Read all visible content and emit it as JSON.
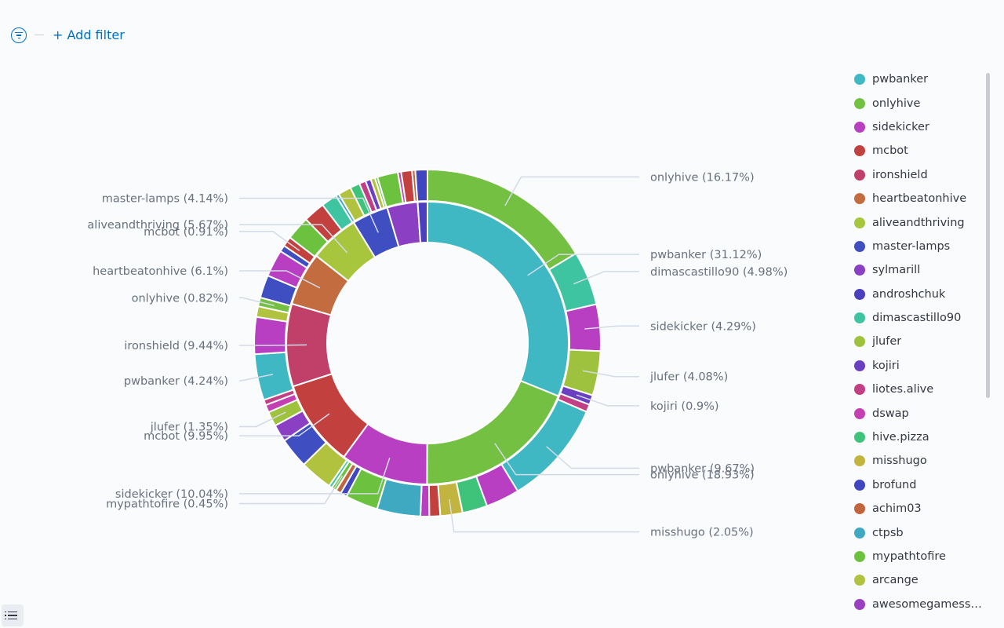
{
  "filter_bar": {
    "add_filter_label": "+ Add filter"
  },
  "chart_data": {
    "type": "pie",
    "subtype": "nested-donut",
    "inner": [
      {
        "name": "pwbanker",
        "value": 31.12
      },
      {
        "name": "onlyhive",
        "value": 18.93
      },
      {
        "name": "sidekicker",
        "value": 10.04
      },
      {
        "name": "mcbot",
        "value": 9.95
      },
      {
        "name": "ironshield",
        "value": 9.44
      },
      {
        "name": "heartbeatonhive",
        "value": 6.1
      },
      {
        "name": "aliveandthriving",
        "value": 5.67
      },
      {
        "name": "master-lamps",
        "value": 4.14
      },
      {
        "name": "sylmarill",
        "value": 3.5
      },
      {
        "name": "androshchuk",
        "value": 1.11
      }
    ],
    "outer": [
      {
        "name": "onlyhive",
        "value": 16.17,
        "parent": "pwbanker"
      },
      {
        "name": "dimascastillo90",
        "value": 4.98,
        "parent": "pwbanker"
      },
      {
        "name": "sidekicker",
        "value": 4.29,
        "parent": "pwbanker"
      },
      {
        "name": "jlufer",
        "value": 4.08,
        "parent": "pwbanker"
      },
      {
        "name": "kojiri",
        "value": 0.9,
        "parent": "pwbanker"
      },
      {
        "name": "liotes.alive",
        "value": 0.7,
        "parent": "pwbanker"
      },
      {
        "name": "pwbanker",
        "value": 9.67,
        "parent": "onlyhive"
      },
      {
        "name": "sidekicker",
        "value": 3.1,
        "parent": "onlyhive"
      },
      {
        "name": "hive.pizza",
        "value": 2.3,
        "parent": "onlyhive"
      },
      {
        "name": "misshugo",
        "value": 2.05,
        "parent": "onlyhive"
      },
      {
        "name": "mcbot",
        "value": 1.0,
        "parent": "onlyhive"
      },
      {
        "name": "sidekicker",
        "value": 0.81,
        "parent": "onlyhive"
      },
      {
        "name": "ctpsb",
        "value": 4.0,
        "parent": "sidekicker"
      },
      {
        "name": "mypathtofire",
        "value": 3.0,
        "parent": "sidekicker"
      },
      {
        "name": "brofund",
        "value": 0.6,
        "parent": "sidekicker"
      },
      {
        "name": "achim03",
        "value": 0.5,
        "parent": "sidekicker"
      },
      {
        "name": "mypathtofire",
        "value": 0.45,
        "parent": "sidekicker"
      },
      {
        "name": "dimascastillo90",
        "value": 0.3,
        "parent": "sidekicker"
      },
      {
        "name": "arcange",
        "value": 3.0,
        "parent": "mcbot"
      },
      {
        "name": "master-lamps",
        "value": 2.8,
        "parent": "mcbot"
      },
      {
        "name": "sylmarill",
        "value": 1.6,
        "parent": "mcbot"
      },
      {
        "name": "jlufer",
        "value": 1.35,
        "parent": "mcbot"
      },
      {
        "name": "dswap",
        "value": 0.7,
        "parent": "mcbot"
      },
      {
        "name": "liotes.alive",
        "value": 0.5,
        "parent": "mcbot"
      },
      {
        "name": "pwbanker",
        "value": 4.24,
        "parent": "ironshield"
      },
      {
        "name": "sidekicker",
        "value": 3.4,
        "parent": "ironshield"
      },
      {
        "name": "arcange",
        "value": 0.98,
        "parent": "ironshield"
      },
      {
        "name": "onlyhive",
        "value": 0.82,
        "parent": "ironshield"
      },
      {
        "name": "master-lamps",
        "value": 2.1,
        "parent": "heartbeatonhive"
      },
      {
        "name": "sidekicker",
        "value": 2.49,
        "parent": "heartbeatonhive"
      },
      {
        "name": "master-lamps",
        "value": 0.6,
        "parent": "heartbeatonhive"
      },
      {
        "name": "mcbot",
        "value": 0.91,
        "parent": "heartbeatonhive"
      },
      {
        "name": "mypathtofire",
        "value": 2.2,
        "parent": "aliveandthriving"
      },
      {
        "name": "mcbot",
        "value": 2.0,
        "parent": "aliveandthriving"
      },
      {
        "name": "dimascastillo90",
        "value": 1.47,
        "parent": "aliveandthriving"
      },
      {
        "name": "ctpsb",
        "value": 0.3,
        "parent": "master-lamps"
      },
      {
        "name": "arcange",
        "value": 1.2,
        "parent": "master-lamps"
      },
      {
        "name": "hive.pizza",
        "value": 0.9,
        "parent": "master-lamps"
      },
      {
        "name": "liotes.alive",
        "value": 0.6,
        "parent": "master-lamps"
      },
      {
        "name": "kojiri",
        "value": 0.5,
        "parent": "master-lamps"
      },
      {
        "name": "arcange",
        "value": 0.4,
        "parent": "master-lamps"
      },
      {
        "name": "mypathtofire",
        "value": 0.24,
        "parent": "master-lamps"
      },
      {
        "name": "mypathtofire",
        "value": 1.9,
        "parent": "sylmarill"
      },
      {
        "name": "dswap",
        "value": 0.3,
        "parent": "sylmarill"
      },
      {
        "name": "mcbot",
        "value": 1.0,
        "parent": "sylmarill"
      },
      {
        "name": "achim03",
        "value": 0.3,
        "parent": "sylmarill"
      },
      {
        "name": "brofund",
        "value": 1.11,
        "parent": "androshchuk"
      }
    ],
    "callouts": [
      {
        "ring": "outer",
        "index": 0,
        "label": "onlyhive (16.17%)"
      },
      {
        "ring": "inner",
        "index": 0,
        "label": "pwbanker (31.12%)"
      },
      {
        "ring": "outer",
        "index": 1,
        "label": "dimascastillo90 (4.98%)"
      },
      {
        "ring": "outer",
        "index": 2,
        "label": "sidekicker (4.29%)"
      },
      {
        "ring": "outer",
        "index": 3,
        "label": "jlufer (4.08%)"
      },
      {
        "ring": "outer",
        "index": 4,
        "label": "kojiri (0.9%)"
      },
      {
        "ring": "outer",
        "index": 6,
        "label": "pwbanker (9.67%)"
      },
      {
        "ring": "inner",
        "index": 1,
        "label": "onlyhive (18.93%)"
      },
      {
        "ring": "outer",
        "index": 9,
        "label": "misshugo (2.05%)"
      },
      {
        "ring": "inner",
        "index": 2,
        "label": "sidekicker (10.04%)"
      },
      {
        "ring": "outer",
        "index": 16,
        "label": "mypathtofire (0.45%)"
      },
      {
        "ring": "inner",
        "index": 3,
        "label": "mcbot (9.95%)"
      },
      {
        "ring": "outer",
        "index": 21,
        "label": "jlufer (1.35%)"
      },
      {
        "ring": "outer",
        "index": 24,
        "label": "pwbanker (4.24%)"
      },
      {
        "ring": "inner",
        "index": 4,
        "label": "ironshield (9.44%)"
      },
      {
        "ring": "outer",
        "index": 27,
        "label": "onlyhive (0.82%)"
      },
      {
        "ring": "inner",
        "index": 5,
        "label": "heartbeatonhive (6.1%)"
      },
      {
        "ring": "outer",
        "index": 31,
        "label": "mcbot (0.91%)"
      },
      {
        "ring": "inner",
        "index": 6,
        "label": "aliveandthriving (5.67%)"
      },
      {
        "ring": "inner",
        "index": 7,
        "label": "master-lamps (4.14%)"
      }
    ],
    "colors": {
      "pwbanker": "#3fb8c3",
      "onlyhive": "#74c043",
      "sidekicker": "#b93fc2",
      "mcbot": "#c2413e",
      "ironshield": "#c0406a",
      "heartbeatonhive": "#c36c3f",
      "aliveandthriving": "#a8c53e",
      "master-lamps": "#3f4ec0",
      "sylmarill": "#8b3fc2",
      "androshchuk": "#4b3fc0",
      "dimascastillo90": "#3ec4a0",
      "jlufer": "#9fc23e",
      "kojiri": "#6a3fc2",
      "liotes.alive": "#c23f86",
      "dswap": "#c43fb0",
      "hive.pizza": "#3fc27a",
      "misshugo": "#c2b53f",
      "brofund": "#3f46c0",
      "achim03": "#c2653f",
      "ctpsb": "#3fa9c2",
      "mypathtofire": "#6cc23f",
      "arcange": "#b1c23f",
      "awesomegamesstudio": "#9a3fc2"
    },
    "legend": [
      "pwbanker",
      "onlyhive",
      "sidekicker",
      "mcbot",
      "ironshield",
      "heartbeatonhive",
      "aliveandthriving",
      "master-lamps",
      "sylmarill",
      "androshchuk",
      "dimascastillo90",
      "jlufer",
      "kojiri",
      "liotes.alive",
      "dswap",
      "hive.pizza",
      "misshugo",
      "brofund",
      "achim03",
      "ctpsb",
      "mypathtofire",
      "arcange",
      "awesomegamesstudio"
    ]
  }
}
